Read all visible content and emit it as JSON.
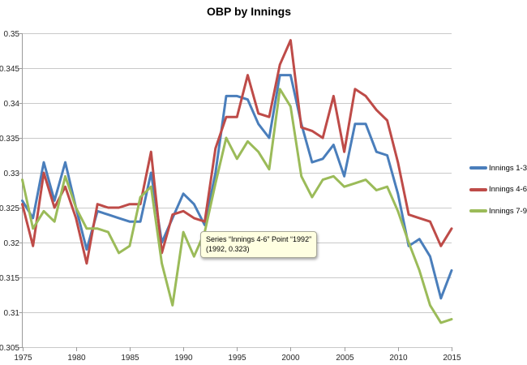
{
  "chart_data": {
    "type": "line",
    "title": "OBP by Innings",
    "xlabel": "",
    "ylabel": "",
    "grid": true,
    "legend_position": "right",
    "xlim": [
      1975,
      2015
    ],
    "ylim": [
      0.305,
      0.35
    ],
    "x_ticks": [
      1975,
      1980,
      1985,
      1990,
      1995,
      2000,
      2005,
      2010,
      2015
    ],
    "x_tick_labels": [
      "1975",
      "1980",
      "1985",
      "1990",
      "1995",
      "2000",
      "2005",
      "2010",
      "2015"
    ],
    "y_ticks": [
      0.35,
      0.345,
      0.34,
      0.335,
      0.33,
      0.325,
      0.32,
      0.315,
      0.31,
      0.305
    ],
    "y_tick_labels": [
      "0.35",
      "0.345",
      "0.34",
      "0.335",
      "0.33",
      "0.325",
      "0.32",
      "0.315",
      "0.31",
      "0.305"
    ],
    "x": [
      1975,
      1976,
      1977,
      1978,
      1979,
      1980,
      1981,
      1982,
      1983,
      1984,
      1985,
      1986,
      1987,
      1988,
      1989,
      1990,
      1991,
      1992,
      1993,
      1994,
      1995,
      1996,
      1997,
      1998,
      1999,
      2000,
      2001,
      2002,
      2003,
      2004,
      2005,
      2006,
      2007,
      2008,
      2009,
      2010,
      2011,
      2012,
      2013,
      2014,
      2015
    ],
    "series": [
      {
        "name": "Innings 1-3",
        "color": "#4A7EBB",
        "values": [
          0.326,
          0.3235,
          0.3315,
          0.326,
          0.3315,
          0.325,
          0.319,
          0.3245,
          0.324,
          0.3235,
          0.323,
          0.323,
          0.33,
          0.32,
          0.3235,
          0.327,
          0.3255,
          0.3225,
          0.33,
          0.341,
          0.341,
          0.3405,
          0.337,
          0.335,
          0.344,
          0.344,
          0.337,
          0.3315,
          0.332,
          0.334,
          0.3295,
          0.337,
          0.337,
          0.333,
          0.3325,
          0.327,
          0.3195,
          0.3205,
          0.318,
          0.312,
          0.316
        ]
      },
      {
        "name": "Innings 4-6",
        "color": "#BE4B48",
        "values": [
          0.3255,
          0.3195,
          0.33,
          0.325,
          0.328,
          0.3235,
          0.317,
          0.3255,
          0.325,
          0.325,
          0.3255,
          0.3255,
          0.333,
          0.3185,
          0.324,
          0.3245,
          0.3235,
          0.323,
          0.3335,
          0.338,
          0.338,
          0.344,
          0.3385,
          0.338,
          0.3455,
          0.349,
          0.3365,
          0.336,
          0.335,
          0.341,
          0.333,
          0.342,
          0.341,
          0.339,
          0.3375,
          0.3315,
          0.324,
          0.3235,
          0.323,
          0.3195,
          0.322
        ]
      },
      {
        "name": "Innings 7-9",
        "color": "#9BBB59",
        "values": [
          0.329,
          0.322,
          0.3245,
          0.323,
          0.3295,
          0.325,
          0.322,
          0.322,
          0.3215,
          0.3185,
          0.3195,
          0.3265,
          0.328,
          0.317,
          0.311,
          0.3215,
          0.318,
          0.3215,
          0.3285,
          0.335,
          0.332,
          0.3345,
          0.333,
          0.3305,
          0.342,
          0.3395,
          0.3295,
          0.3265,
          0.329,
          0.3295,
          0.328,
          0.3285,
          0.329,
          0.3275,
          0.328,
          0.3245,
          0.32,
          0.316,
          0.311,
          0.3085,
          0.309
        ]
      }
    ]
  },
  "tooltip": {
    "line1": "Series “Innings 4-6” Point “1992”",
    "line2": "(1992, 0.323)"
  },
  "styles": {
    "gridline_color": "#c9c9c9",
    "axis_color": "#9b9b9b",
    "tick_label_color": "#262626",
    "tooltip_bg": "#ffffe1"
  }
}
